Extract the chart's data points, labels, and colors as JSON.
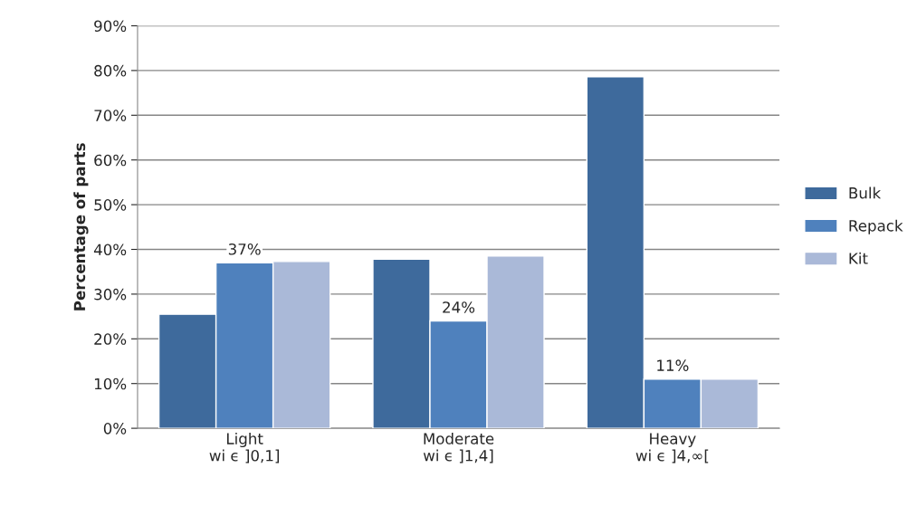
{
  "chart_data": {
    "type": "bar",
    "ylabel": "Percentage of parts",
    "categories": [
      "Light\nwi ϵ ]0,1]",
      "Moderate\nwi ϵ ]1,4]",
      "Heavy\nwi ϵ ]4,∞["
    ],
    "series": [
      {
        "name": "Bulk",
        "color": "#3e6a9c",
        "values": [
          25.5,
          37.8,
          78.6
        ]
      },
      {
        "name": "Repack",
        "color": "#4f81bd",
        "values": [
          37,
          24,
          11
        ],
        "value_labels": [
          "37%",
          "24%",
          "11%"
        ]
      },
      {
        "name": "Kit",
        "color": "#aab9d8",
        "values": [
          37.3,
          38.5,
          11
        ]
      }
    ],
    "ylim": [
      0,
      90
    ],
    "yticks": [
      {
        "value": 0,
        "label": "0%"
      },
      {
        "value": 10,
        "label": "10%"
      },
      {
        "value": 20,
        "label": "20%"
      },
      {
        "value": 30,
        "label": "30%"
      },
      {
        "value": 40,
        "label": "40%"
      },
      {
        "value": 50,
        "label": "50%"
      },
      {
        "value": 60,
        "label": "60%"
      },
      {
        "value": 70,
        "label": "70%"
      },
      {
        "value": 80,
        "label": "80%"
      },
      {
        "value": 90,
        "label": "90%"
      }
    ],
    "grid": "y",
    "legend": "right"
  }
}
